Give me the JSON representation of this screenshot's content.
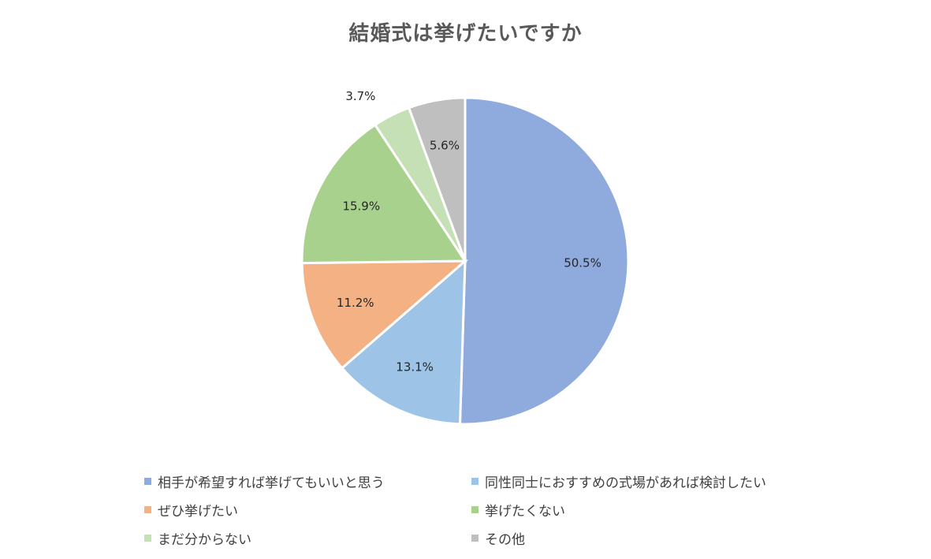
{
  "chart_data": {
    "type": "pie",
    "title": "結婚式は挙げたいですか",
    "legend_position": "bottom",
    "slices": [
      {
        "label": "相手が希望すれば挙げてもいいと思う",
        "value": 50.5,
        "value_label": "50.5%",
        "color": "#8FAADC"
      },
      {
        "label": "同性同士におすすめの式場があれば検討したい",
        "value": 13.1,
        "value_label": "13.1%",
        "color": "#9DC3E6"
      },
      {
        "label": "ぜひ挙げたい",
        "value": 11.2,
        "value_label": "11.2%",
        "color": "#F4B183"
      },
      {
        "label": "挙げたくない",
        "value": 15.9,
        "value_label": "15.9%",
        "color": "#A9D18E"
      },
      {
        "label": "まだ分からない",
        "value": 3.7,
        "value_label": "3.7%",
        "color": "#C5E0B4"
      },
      {
        "label": "その他",
        "value": 5.6,
        "value_label": "5.6%",
        "color": "#BFBFBF"
      }
    ]
  }
}
